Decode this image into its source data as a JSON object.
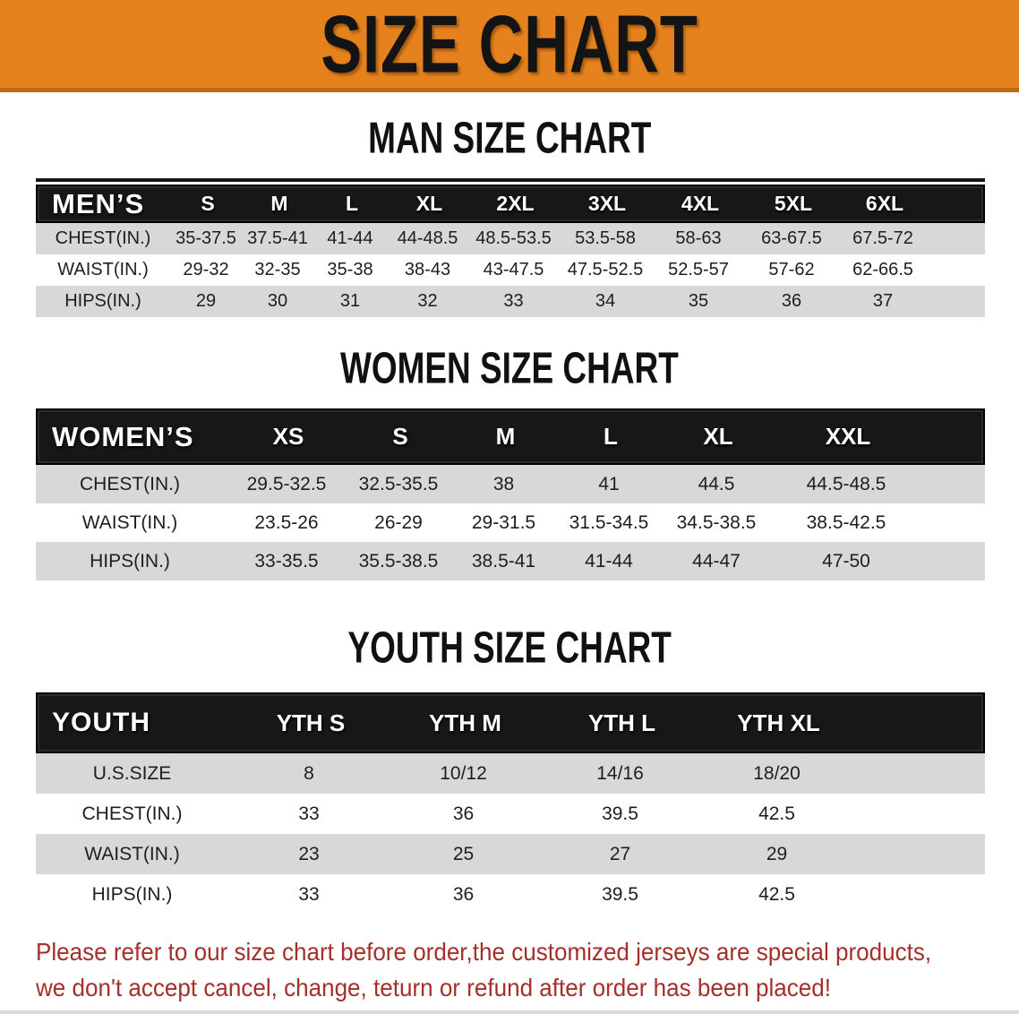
{
  "banner": {
    "title": "SIZE CHART"
  },
  "colors": {
    "banner_orange": "#E5821E",
    "banner_edge": "#BC6A16",
    "header_black": "#171717",
    "row_gray": "#D8D8D8",
    "note_red": "#A5302A"
  },
  "men_section": {
    "heading": "MAN SIZE CHART",
    "table": {
      "header": [
        "MEN’S",
        "S",
        "M",
        "L",
        "XL",
        "2XL",
        "3XL",
        "4XL",
        "5XL",
        "6XL"
      ],
      "rows": [
        {
          "label": "CHEST(IN.)",
          "values": [
            "35-37.5",
            "37.5-41",
            "41-44",
            "44-48.5",
            "48.5-53.5",
            "53.5-58",
            "58-63",
            "63-67.5",
            "67.5-72"
          ]
        },
        {
          "label": "WAIST(IN.)",
          "values": [
            "29-32",
            "32-35",
            "35-38",
            "38-43",
            "43-47.5",
            "47.5-52.5",
            "52.5-57",
            "57-62",
            "62-66.5"
          ]
        },
        {
          "label": "HIPS(IN.)",
          "values": [
            "29",
            "30",
            "31",
            "32",
            "33",
            "34",
            "35",
            "36",
            "37"
          ]
        }
      ]
    }
  },
  "women_section": {
    "heading": "WOMEN SIZE CHART",
    "table": {
      "header": [
        "WOMEN’S",
        "XS",
        "S",
        "M",
        "L",
        "XL",
        "XXL"
      ],
      "rows": [
        {
          "label": "CHEST(IN.)",
          "values": [
            "29.5-32.5",
            "32.5-35.5",
            "38",
            "41",
            "44.5",
            "44.5-48.5"
          ]
        },
        {
          "label": "WAIST(IN.)",
          "values": [
            "23.5-26",
            "26-29",
            "29-31.5",
            "31.5-34.5",
            "34.5-38.5",
            "38.5-42.5"
          ]
        },
        {
          "label": "HIPS(IN.)",
          "values": [
            "33-35.5",
            "35.5-38.5",
            "38.5-41",
            "41-44",
            "44-47",
            "47-50"
          ]
        }
      ]
    }
  },
  "youth_section": {
    "heading": "YOUTH SIZE CHART",
    "table": {
      "header": [
        "YOUTH",
        "YTH S",
        "YTH M",
        "YTH L",
        "YTH XL"
      ],
      "rows": [
        {
          "label": "U.S.SIZE",
          "values": [
            "8",
            "10/12",
            "14/16",
            "18/20"
          ]
        },
        {
          "label": "CHEST(IN.)",
          "values": [
            "33",
            "36",
            "39.5",
            "42.5"
          ]
        },
        {
          "label": "WAIST(IN.)",
          "values": [
            "23",
            "25",
            "27",
            "29"
          ]
        },
        {
          "label": "HIPS(IN.)",
          "values": [
            "33",
            "36",
            "39.5",
            "42.5"
          ]
        }
      ]
    }
  },
  "footer_note": {
    "line1": "Please refer to our size chart before order,the customized jerseys are special products,",
    "line2": "we don't accept cancel, change, teturn or refund after order has been placed!"
  }
}
